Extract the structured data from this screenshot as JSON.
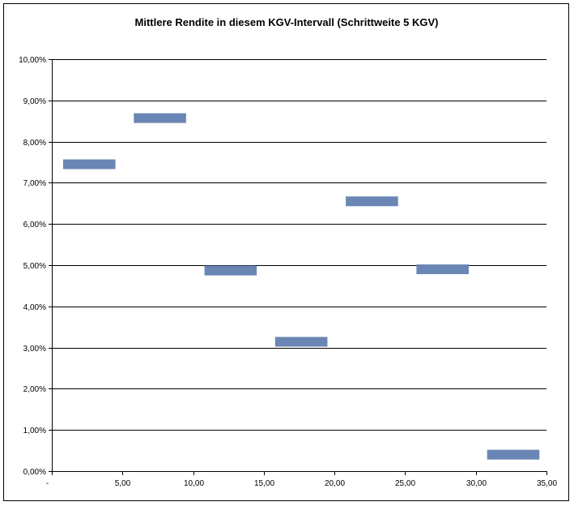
{
  "chart_data": {
    "type": "bar",
    "title": "Mittlere Rendite in diesem KGV-Intervall (Schrittweite 5 KGV)",
    "xlabel": "",
    "ylabel": "",
    "xlim": [
      0,
      35
    ],
    "ylim": [
      0,
      0.1
    ],
    "grid": true,
    "legend": "none",
    "x_ticks": [
      "-",
      "5,00",
      "10,00",
      "15,00",
      "20,00",
      "25,00",
      "30,00",
      "35,00"
    ],
    "x_tick_values": [
      0,
      5,
      10,
      15,
      20,
      25,
      30,
      35
    ],
    "y_ticks": [
      "0,00%",
      "1,00%",
      "2,00%",
      "3,00%",
      "4,00%",
      "5,00%",
      "6,00%",
      "7,00%",
      "8,00%",
      "9,00%",
      "10,00%"
    ],
    "y_tick_values": [
      0,
      0.01,
      0.02,
      0.03,
      0.04,
      0.05,
      0.06,
      0.07,
      0.08,
      0.09,
      0.1
    ],
    "series": [
      {
        "values": [
          {
            "x_start": 0.8,
            "x_end": 4.5,
            "y": 0.0745
          },
          {
            "x_start": 5.8,
            "x_end": 9.5,
            "y": 0.0857
          },
          {
            "x_start": 10.8,
            "x_end": 14.5,
            "y": 0.0487
          },
          {
            "x_start": 15.8,
            "x_end": 19.5,
            "y": 0.0314
          },
          {
            "x_start": 20.8,
            "x_end": 24.5,
            "y": 0.0655
          },
          {
            "x_start": 25.8,
            "x_end": 29.5,
            "y": 0.049
          },
          {
            "x_start": 30.8,
            "x_end": 34.5,
            "y": 0.004
          }
        ]
      }
    ],
    "colors": {
      "bar": "#6a86b4",
      "grid": "#000000"
    }
  }
}
